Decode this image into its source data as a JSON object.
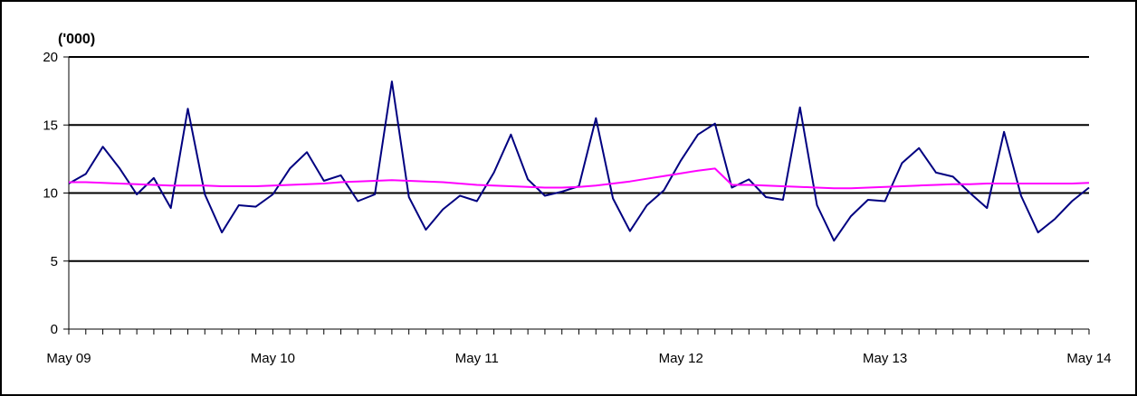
{
  "chart_data": {
    "type": "line",
    "unit_label": "('000)",
    "y_ticks": [
      0,
      5,
      10,
      15,
      20
    ],
    "y_tick_labels": [
      "0",
      "5",
      "10",
      "15",
      "20"
    ],
    "ylim": [
      0,
      20
    ],
    "x_tick_labels": [
      "May 09",
      "May 10",
      "May 11",
      "May 12",
      "May 13",
      "May 14"
    ],
    "x_periods": 60,
    "grid": "horizontal major gridlines",
    "colors": {
      "series_1": "#000080",
      "series_2": "#ff00ff",
      "grid": "#000000"
    },
    "series": [
      {
        "values": [
          10.7,
          11.4,
          13.4,
          11.8,
          9.9,
          11.1,
          8.9,
          16.2,
          9.9,
          7.1,
          9.1,
          9.0,
          9.9,
          11.8,
          13.0,
          10.9,
          11.3,
          9.4,
          9.9,
          18.2,
          9.7,
          7.3,
          8.8,
          9.8,
          9.4,
          11.5,
          14.3,
          11.0,
          9.8,
          10.1,
          10.5,
          15.5,
          9.6,
          7.2,
          9.1,
          10.2,
          12.4,
          14.3,
          15.1,
          10.4,
          11.0,
          9.7,
          9.5,
          16.3,
          9.1,
          6.5,
          8.3,
          9.5,
          9.4,
          12.2,
          13.3,
          11.5,
          11.2,
          10.0,
          8.9,
          14.5,
          9.8,
          7.1,
          8.1,
          9.4,
          10.4
        ]
      },
      {
        "values": [
          10.8,
          10.8,
          10.75,
          10.7,
          10.65,
          10.6,
          10.55,
          10.55,
          10.55,
          10.5,
          10.5,
          10.5,
          10.55,
          10.6,
          10.65,
          10.7,
          10.8,
          10.85,
          10.9,
          10.95,
          10.9,
          10.85,
          10.8,
          10.7,
          10.6,
          10.55,
          10.5,
          10.45,
          10.4,
          10.4,
          10.45,
          10.55,
          10.7,
          10.85,
          11.05,
          11.25,
          11.45,
          11.65,
          11.8,
          10.6,
          10.6,
          10.55,
          10.5,
          10.45,
          10.4,
          10.35,
          10.35,
          10.4,
          10.45,
          10.5,
          10.55,
          10.6,
          10.65,
          10.65,
          10.7,
          10.7,
          10.7,
          10.7,
          10.7,
          10.7,
          10.75
        ]
      }
    ]
  }
}
